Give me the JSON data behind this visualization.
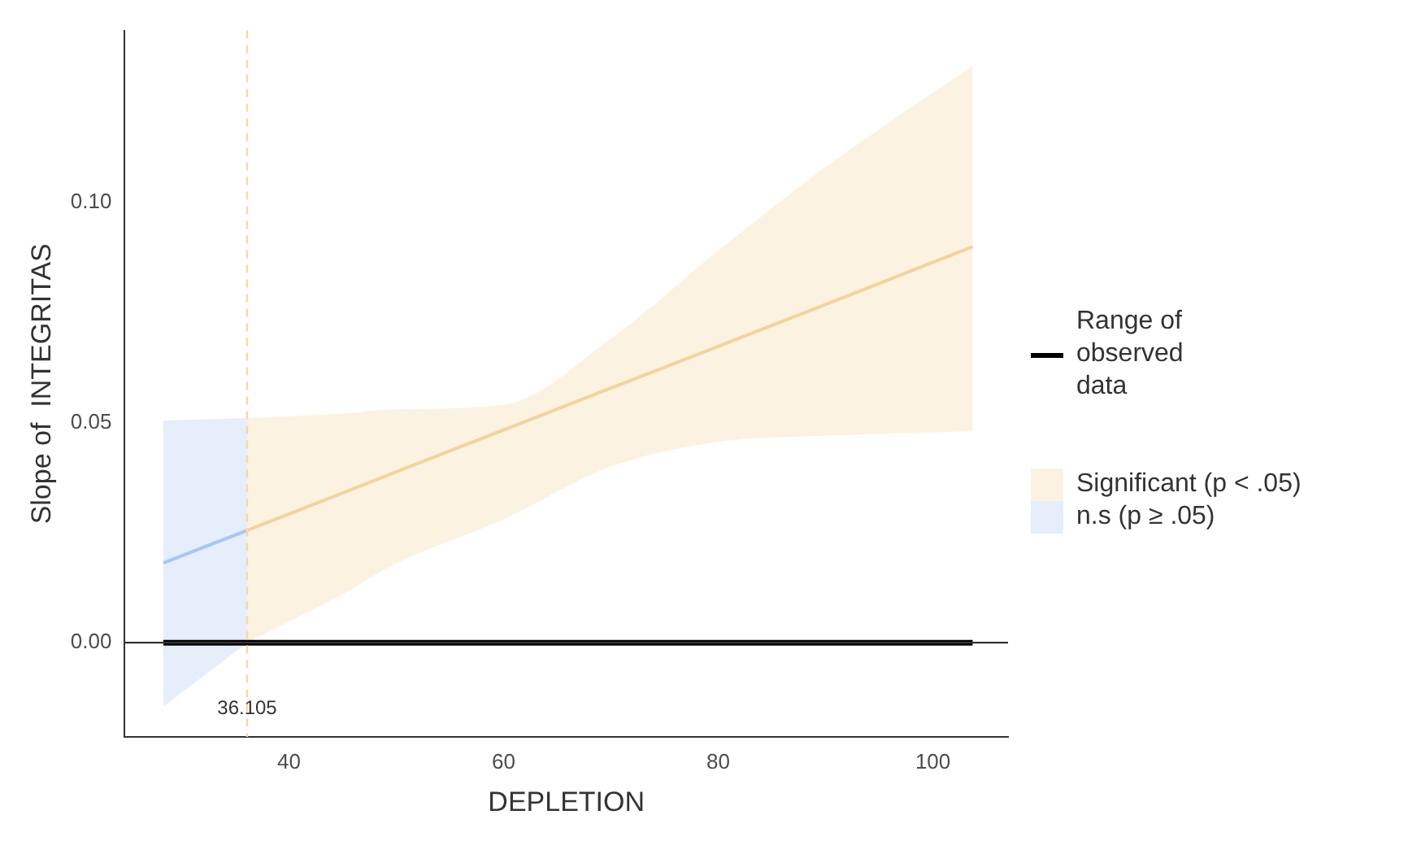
{
  "chart_data": {
    "type": "line",
    "xlabel": "DEPLETION",
    "ylabel": "Slope of  INTEGRITAS",
    "xlim": [
      24.7,
      107
    ],
    "ylim": [
      -0.0214,
      0.139
    ],
    "xticks": [
      40,
      60,
      80,
      100
    ],
    "yticks": [
      {
        "value": 0,
        "label": "0.00"
      },
      {
        "value": 0.05,
        "label": "0.05"
      },
      {
        "value": 0.1,
        "label": "0.10"
      }
    ],
    "grid": false,
    "legend": "right",
    "marker": "none",
    "series": [
      {
        "name": "Range of observed data",
        "color": "#000000",
        "x": [
          28.3,
          103.7
        ],
        "values": [
          0,
          0
        ]
      },
      {
        "name": "Significant (p < .05)",
        "color": "#f1d49c",
        "x": [
          36.105,
          45,
          50,
          60,
          70,
          80,
          90,
          103.7
        ],
        "values": [
          0.0255,
          0.034,
          0.0388,
          0.0483,
          0.0578,
          0.0673,
          0.0768,
          0.0899
        ],
        "lower": [
          0,
          0.011,
          0.018,
          0.028,
          0.04,
          0.0456,
          0.047,
          0.048
        ],
        "upper": [
          0.051,
          0.052,
          0.053,
          0.054,
          0.069,
          0.089,
          0.108,
          0.131
        ]
      },
      {
        "name": "n.s (p ≥ .05)",
        "color": "#a9c6f0",
        "x": [
          28.3,
          36.105
        ],
        "values": [
          0.0181,
          0.0255
        ],
        "lower": [
          -0.0145,
          0
        ],
        "upper": [
          0.0504,
          0.051
        ]
      }
    ],
    "ref_lines": [
      {
        "axis": "y",
        "value": 0,
        "color": "#333333",
        "line_style": "solid"
      },
      {
        "axis": "x",
        "value": 36.105,
        "label": "36.105",
        "color": "#f5d9a8",
        "line_style": "dashed"
      }
    ]
  }
}
